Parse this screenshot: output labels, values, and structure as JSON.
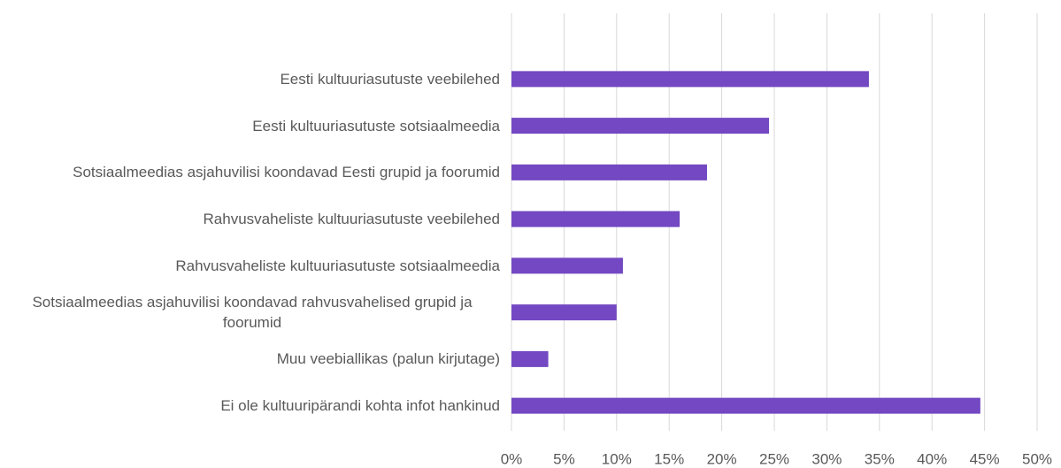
{
  "chart_data": {
    "type": "bar",
    "orientation": "horizontal",
    "categories": [
      "Eesti kultuuriasutuste veebilehed",
      "Eesti kultuuriasutuste sotsiaalmeedia",
      "Sotsiaalmeedias asjahuvilisi koondavad Eesti grupid ja foorumid",
      "Rahvusvaheliste kultuuriasutuste veebilehed",
      "Rahvusvaheliste kultuuriasutuste sotsiaalmeedia",
      "Sotsiaalmeedias asjahuvilisi koondavad rahvusvahelised grupid ja foorumid",
      "Muu veebiallikas (palun kirjutage)",
      "Ei ole kultuuripärandi kohta infot hankinud"
    ],
    "values": [
      34,
      24.5,
      18.6,
      16,
      10.6,
      10,
      3.5,
      44.6
    ],
    "color": "#7348c2",
    "xlim": [
      0,
      50
    ],
    "xticks": [
      {
        "value": 0,
        "label": "0%"
      },
      {
        "value": 5,
        "label": "5%"
      },
      {
        "value": 10,
        "label": "10%"
      },
      {
        "value": 15,
        "label": "15%"
      },
      {
        "value": 20,
        "label": "20%"
      },
      {
        "value": 25,
        "label": "25%"
      },
      {
        "value": 30,
        "label": "30%"
      },
      {
        "value": 35,
        "label": "35%"
      },
      {
        "value": 40,
        "label": "40%"
      },
      {
        "value": 45,
        "label": "45%"
      },
      {
        "value": 50,
        "label": "50%"
      }
    ],
    "grid": true
  }
}
